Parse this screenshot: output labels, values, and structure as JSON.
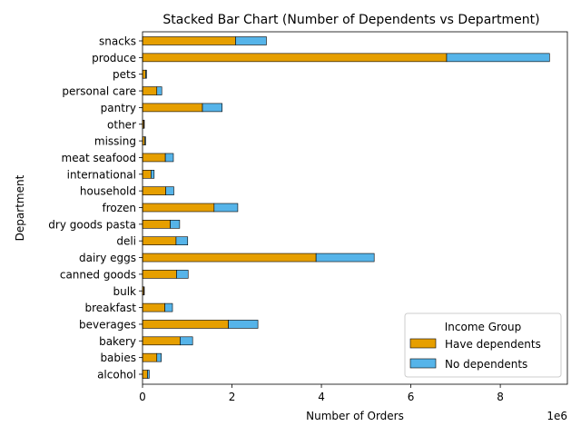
{
  "chart_data": {
    "type": "bar",
    "orientation": "horizontal",
    "stacked": true,
    "title": "Stacked Bar Chart (Number of Dependents vs Department)",
    "xlabel": "Number of Orders",
    "ylabel": "Department",
    "x_scale_label": "1e6",
    "x_tick_labels": [
      "0",
      "2",
      "4",
      "6",
      "8"
    ],
    "xlim": [
      0,
      9.5
    ],
    "grid": false,
    "legend": {
      "title": "Income Group",
      "placement": "lower-right"
    },
    "categories": [
      "alcohol",
      "babies",
      "bakery",
      "beverages",
      "breakfast",
      "bulk",
      "canned goods",
      "dairy eggs",
      "deli",
      "dry goods pasta",
      "frozen",
      "household",
      "international",
      "meat seafood",
      "missing",
      "other",
      "pantry",
      "personal care",
      "pets",
      "produce",
      "snacks"
    ],
    "series": [
      {
        "name": "Have dependents",
        "color": "#E69F00",
        "values": [
          0.11,
          0.32,
          0.84,
          1.92,
          0.5,
          0.03,
          0.76,
          3.88,
          0.75,
          0.62,
          1.6,
          0.52,
          0.19,
          0.51,
          0.05,
          0.03,
          1.34,
          0.32,
          0.07,
          6.8,
          2.08
        ]
      },
      {
        "name": "No dependents",
        "color": "#56B4E9",
        "values": [
          0.04,
          0.1,
          0.28,
          0.66,
          0.17,
          0.01,
          0.26,
          1.3,
          0.26,
          0.21,
          0.53,
          0.18,
          0.07,
          0.18,
          0.02,
          0.01,
          0.44,
          0.11,
          0.02,
          2.3,
          0.69
        ]
      }
    ]
  }
}
